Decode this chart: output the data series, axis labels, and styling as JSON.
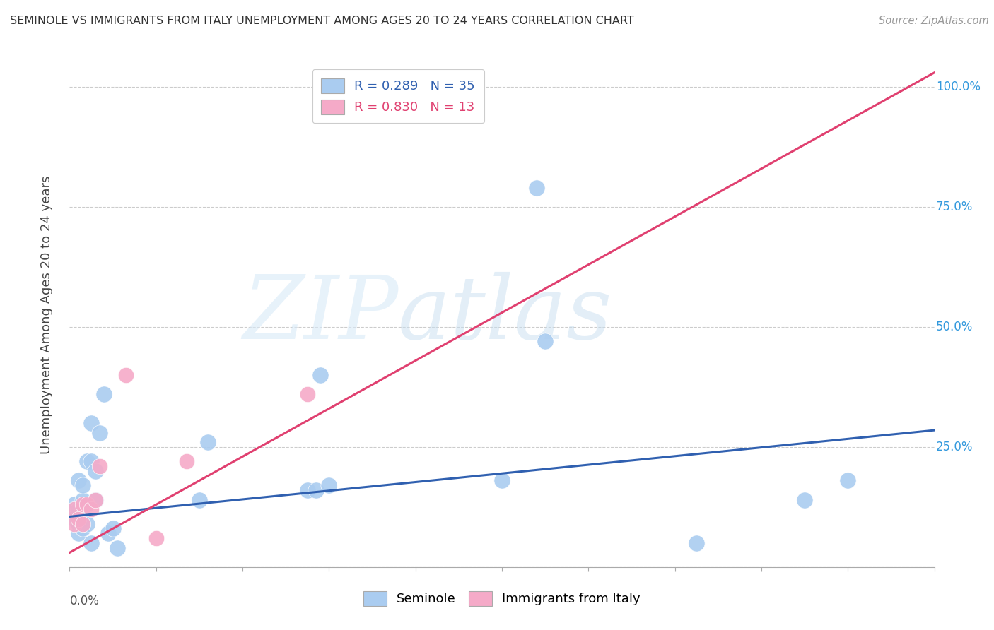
{
  "title": "SEMINOLE VS IMMIGRANTS FROM ITALY UNEMPLOYMENT AMONG AGES 20 TO 24 YEARS CORRELATION CHART",
  "source": "Source: ZipAtlas.com",
  "ylabel": "Unemployment Among Ages 20 to 24 years",
  "seminole_color": "#aaccf0",
  "italy_color": "#f5aac8",
  "seminole_line_color": "#3060b0",
  "italy_line_color": "#e04070",
  "legend_r1": "R = 0.289",
  "legend_n1": "N = 35",
  "legend_r2": "R = 0.830",
  "legend_n2": "N = 13",
  "legend_label1": "Seminole",
  "legend_label2": "Immigrants from Italy",
  "watermark_zip": "ZIP",
  "watermark_atlas": "atlas",
  "seminole_x": [
    0.001,
    0.001,
    0.001,
    0.002,
    0.002,
    0.002,
    0.002,
    0.003,
    0.003,
    0.003,
    0.003,
    0.004,
    0.004,
    0.005,
    0.005,
    0.005,
    0.006,
    0.006,
    0.007,
    0.008,
    0.009,
    0.01,
    0.011,
    0.03,
    0.032,
    0.055,
    0.057,
    0.058,
    0.06,
    0.1,
    0.108,
    0.11,
    0.145,
    0.17,
    0.18
  ],
  "seminole_y": [
    0.1,
    0.12,
    0.13,
    0.07,
    0.09,
    0.12,
    0.18,
    0.08,
    0.12,
    0.14,
    0.17,
    0.09,
    0.22,
    0.05,
    0.22,
    0.3,
    0.14,
    0.2,
    0.28,
    0.36,
    0.07,
    0.08,
    0.04,
    0.14,
    0.26,
    0.16,
    0.16,
    0.4,
    0.17,
    0.18,
    0.79,
    0.47,
    0.05,
    0.14,
    0.18
  ],
  "italy_x": [
    0.001,
    0.001,
    0.002,
    0.003,
    0.003,
    0.004,
    0.005,
    0.006,
    0.007,
    0.013,
    0.02,
    0.027,
    0.055
  ],
  "italy_y": [
    0.09,
    0.12,
    0.1,
    0.09,
    0.13,
    0.13,
    0.12,
    0.14,
    0.21,
    0.4,
    0.06,
    0.22,
    0.36
  ],
  "seminole_line_x": [
    0.0,
    0.2
  ],
  "seminole_line_y": [
    0.105,
    0.285
  ],
  "italy_line_x": [
    0.0,
    0.2
  ],
  "italy_line_y": [
    0.03,
    1.03
  ],
  "xmin": 0.0,
  "xmax": 0.2,
  "ymin": 0.0,
  "ymax": 1.05,
  "yticks": [
    0.0,
    0.25,
    0.5,
    0.75,
    1.0
  ],
  "xticks": [
    0.0,
    0.02,
    0.04,
    0.06,
    0.08,
    0.1,
    0.12,
    0.14,
    0.16,
    0.18,
    0.2
  ]
}
